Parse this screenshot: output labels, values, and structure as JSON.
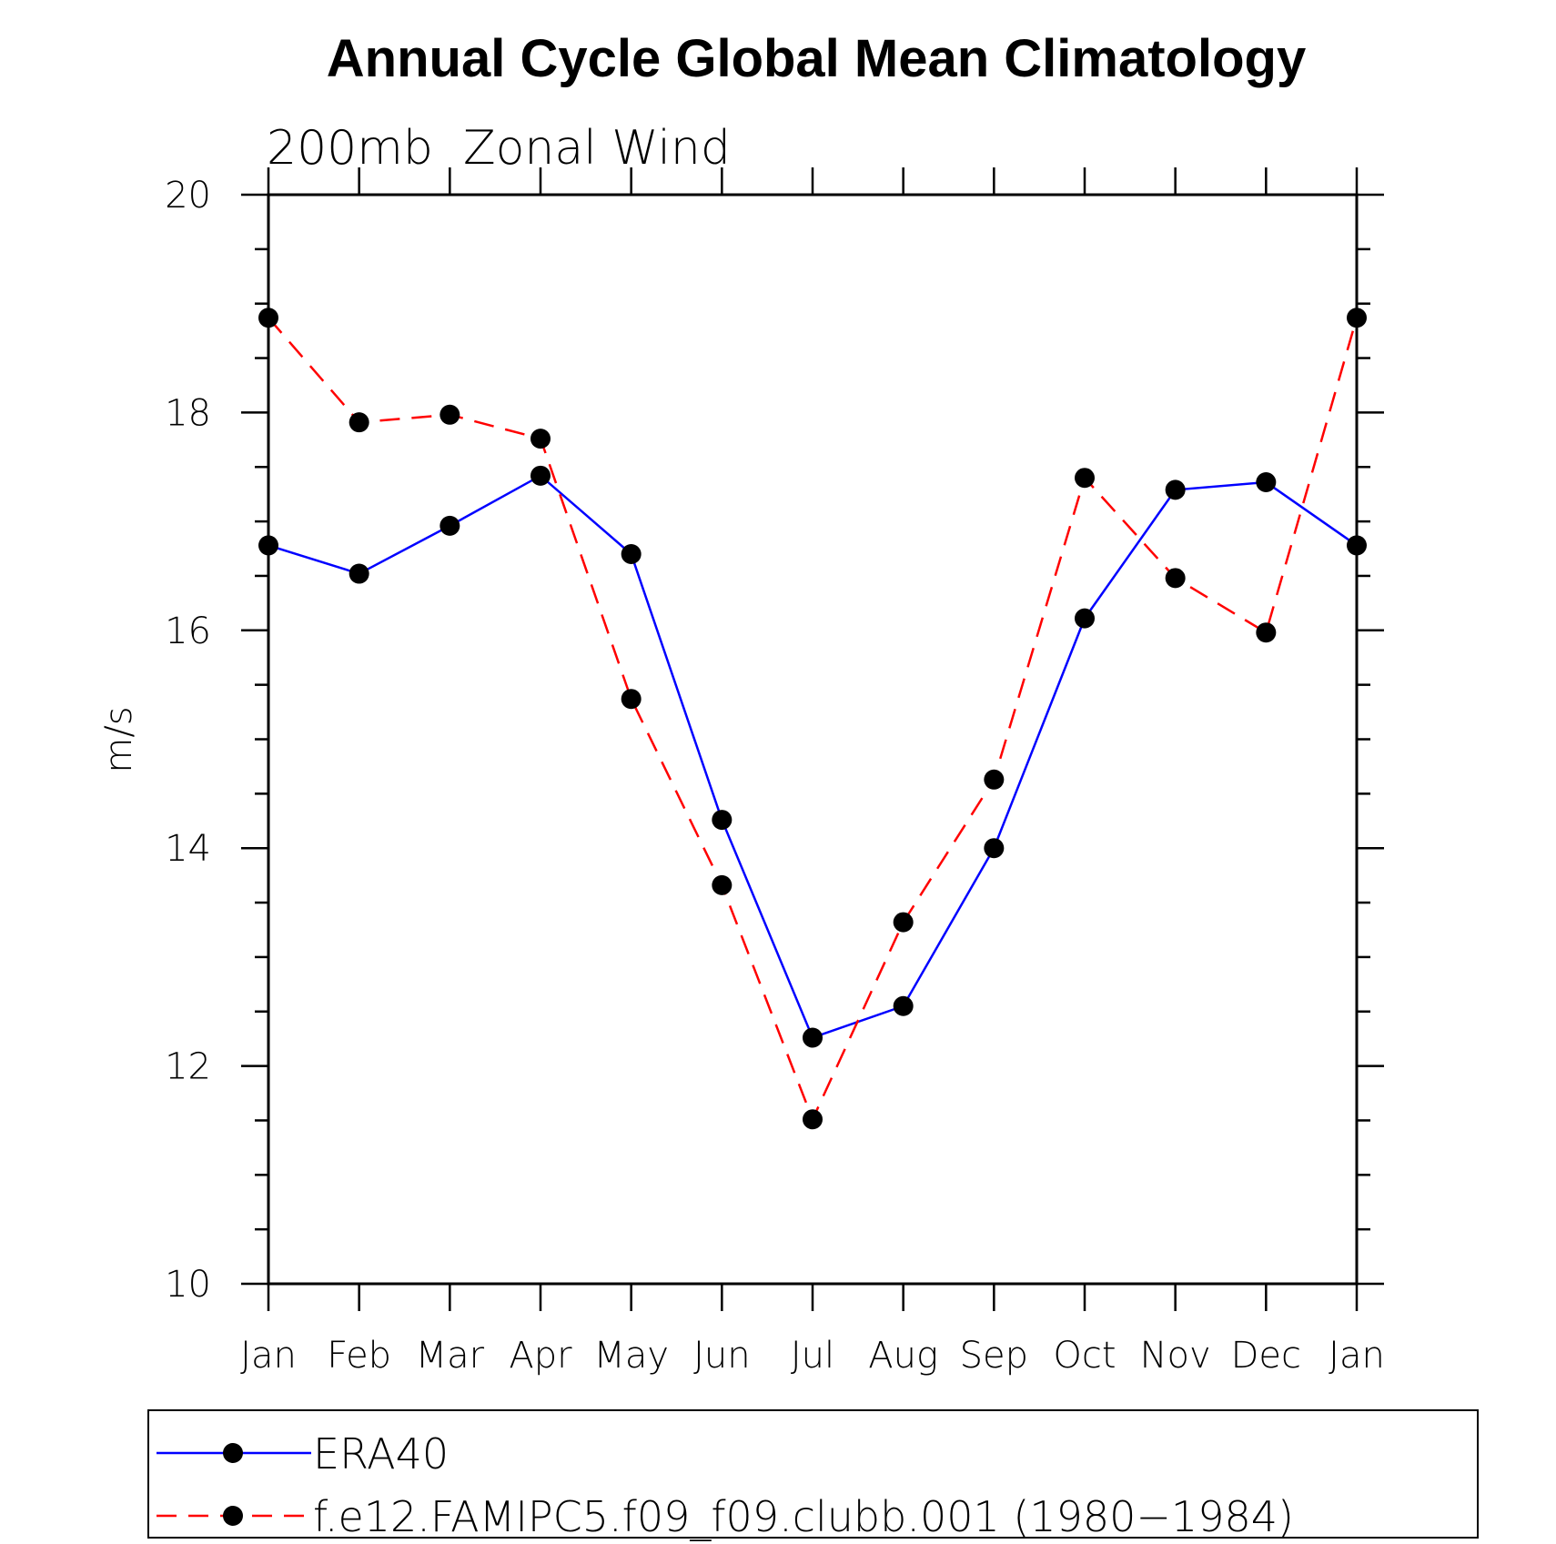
{
  "chart_data": {
    "type": "line",
    "title": "Annual Cycle Global Mean Climatology",
    "subtitle": "200mb  Zonal Wind",
    "xlabel": "",
    "ylabel": "m/s",
    "ylim": [
      10,
      20
    ],
    "yticks": [
      10,
      12,
      14,
      16,
      18,
      20
    ],
    "yticks_labels": [
      "10",
      "12",
      "14",
      "16",
      "18",
      "20"
    ],
    "categories": [
      "Jan",
      "Feb",
      "Mar",
      "Apr",
      "May",
      "Jun",
      "Jul",
      "Aug",
      "Sep",
      "Oct",
      "Nov",
      "Dec",
      "Jan"
    ],
    "legend_position": "bottom",
    "series": [
      {
        "name": "ERA40",
        "color": "#0000ff",
        "dash": "solid",
        "marker": "filled-circle",
        "values": [
          16.78,
          16.52,
          16.96,
          17.42,
          16.7,
          14.26,
          12.26,
          12.55,
          14.0,
          16.11,
          17.29,
          17.36,
          16.78
        ]
      },
      {
        "name": "f.e12.FAMIPC5.f09_f09.clubb.001 (1980−1984)",
        "color": "#ff0000",
        "dash": "dashed",
        "marker": "filled-circle",
        "values": [
          18.87,
          17.91,
          17.98,
          17.76,
          15.37,
          13.66,
          11.51,
          13.32,
          14.63,
          17.4,
          16.48,
          15.98,
          18.87
        ]
      }
    ]
  }
}
